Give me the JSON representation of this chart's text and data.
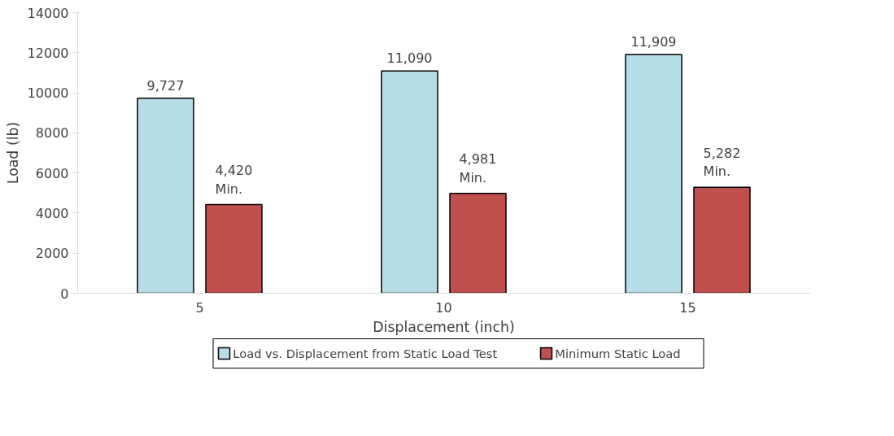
{
  "chart_data": {
    "type": "bar",
    "xlabel": "Displacement (inch)",
    "ylabel": "Load (lb)",
    "categories": [
      "5",
      "10",
      "15"
    ],
    "series": [
      {
        "name": "Load vs. Displacement from Static Load Test",
        "color": "#b7dee8",
        "values": [
          9727,
          11090,
          11909
        ],
        "value_labels": [
          "9,727",
          "11,090",
          "11,909"
        ]
      },
      {
        "name": "Minimum Static Load",
        "color": "#c0504d",
        "values": [
          4420,
          4981,
          5282
        ],
        "value_labels": [
          "4,420\nMin.",
          "4,981\nMin.",
          "5,282\nMin."
        ]
      }
    ],
    "ylim": [
      0,
      14000
    ],
    "yticks": [
      0,
      2000,
      4000,
      6000,
      8000,
      10000,
      12000,
      14000
    ],
    "grid": false,
    "legend": "bottom"
  }
}
